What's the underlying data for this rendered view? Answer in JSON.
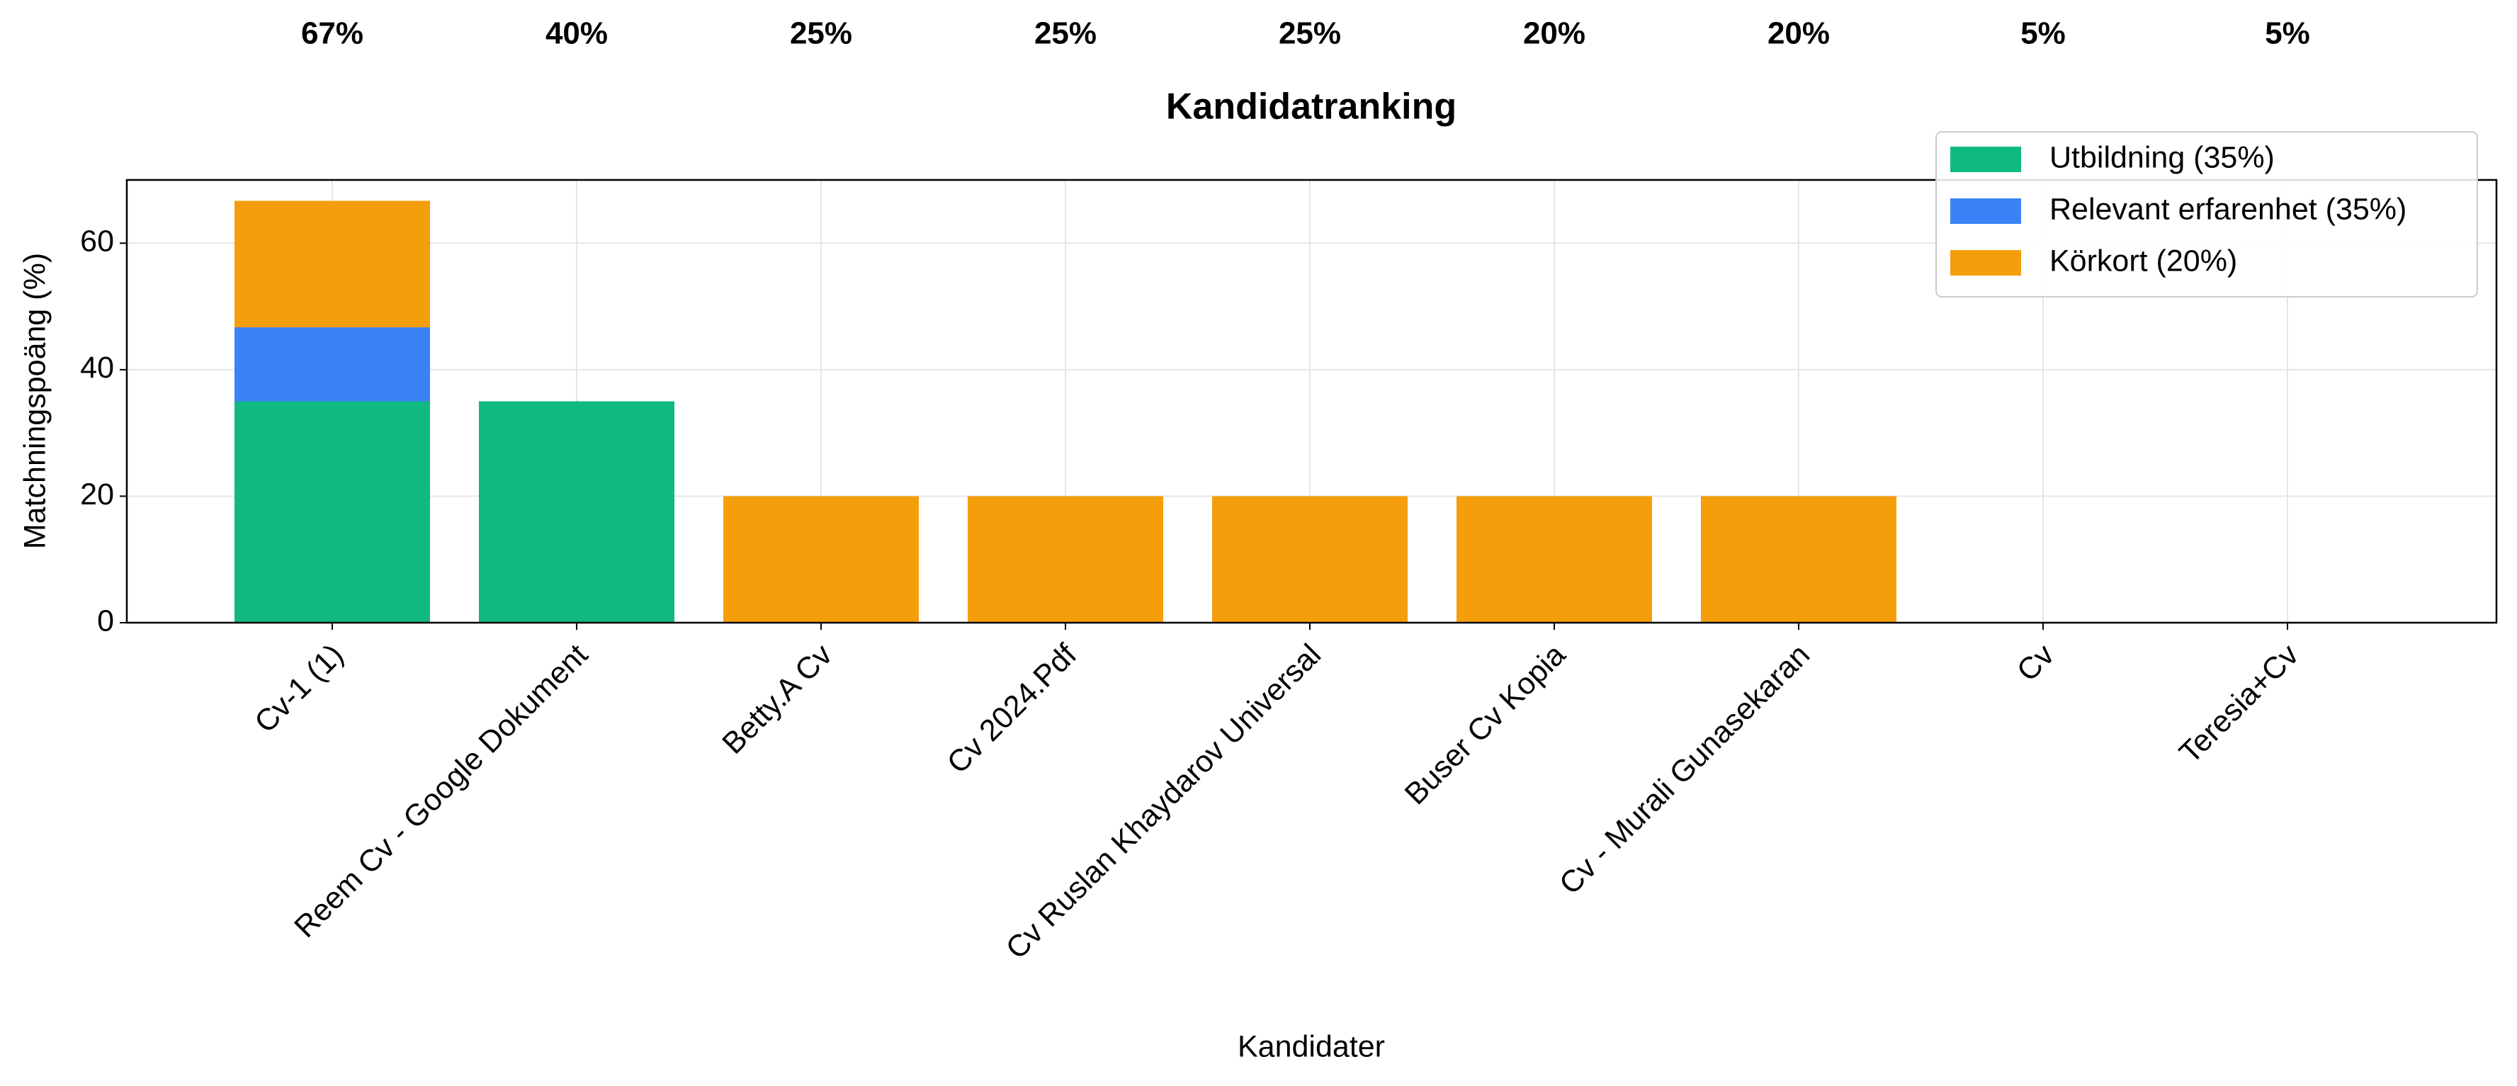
{
  "chart_data": {
    "type": "stacked_bar",
    "title": "Kandidatranking",
    "top_labels": [
      "67%",
      "40%",
      "25%",
      "25%",
      "25%",
      "20%",
      "20%",
      "5%",
      "5%"
    ],
    "xlabel": "Kandidater",
    "ylabel": "Matchningspoäng (%)",
    "categories": [
      "Cv-1 (1)",
      "Reem Cv - Google Dokument",
      "Betty.A Cv",
      "Cv 2024.Pdf",
      "Cv Ruslan Khaydarov Universal",
      "Buser Cv  Kopia",
      "Cv - Murali Gunasekaran",
      "Cv",
      "Teresia+Cv"
    ],
    "series": [
      {
        "name": "Utbildning (35%)",
        "color": "#10b981",
        "values": [
          35,
          35,
          0,
          0,
          0,
          0,
          0,
          0,
          0
        ]
      },
      {
        "name": "Relevant erfarenhet (35%)",
        "color": "#3b82f6",
        "values": [
          11.7,
          0,
          0,
          0,
          0,
          0,
          0,
          0,
          0
        ]
      },
      {
        "name": "Körkort (20%)",
        "color": "#f59e0b",
        "values": [
          20,
          0,
          20,
          20,
          20,
          20,
          20,
          0,
          0
        ]
      }
    ],
    "ylim": [
      0,
      70
    ],
    "yticks": [
      0,
      20,
      40,
      60
    ],
    "grid": true,
    "legend": "upper right"
  }
}
